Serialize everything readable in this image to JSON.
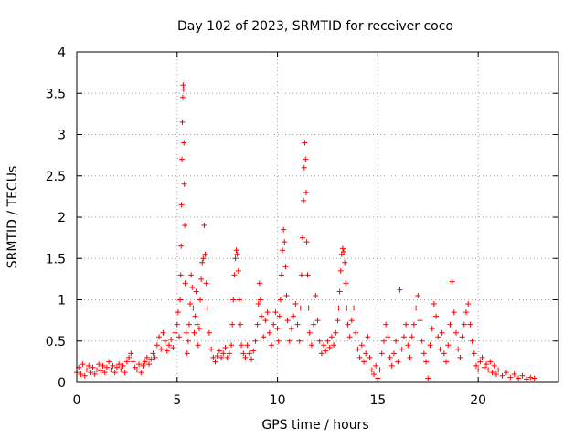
{
  "chart_data": {
    "type": "scatter",
    "title": "Day 102 of 2023, SRMTID for receiver coco",
    "xlabel": "GPS time / hours",
    "ylabel": "SRMTID / TECUs",
    "xlim": [
      0,
      24
    ],
    "ylim": [
      0,
      4
    ],
    "xticks": [
      0,
      5,
      10,
      15,
      20
    ],
    "yticks": [
      0,
      0.5,
      1,
      1.5,
      2,
      2.5,
      3,
      3.5,
      4
    ],
    "xtick_labels": [
      "0",
      "5",
      "10",
      "15",
      "20"
    ],
    "ytick_labels": [
      "0",
      "0.5",
      "1",
      "1.5",
      "2",
      "2.5",
      "3",
      "3.5",
      "4"
    ],
    "grid": true,
    "marker": "+",
    "marker_color": "#ff0000",
    "series": [
      {
        "name": "SRMTID",
        "points": [
          [
            0.0,
            0.12
          ],
          [
            0.1,
            0.18
          ],
          [
            0.2,
            0.1
          ],
          [
            0.3,
            0.22
          ],
          [
            0.4,
            0.08
          ],
          [
            0.5,
            0.15
          ],
          [
            0.6,
            0.2
          ],
          [
            0.7,
            0.12
          ],
          [
            0.8,
            0.18
          ],
          [
            0.9,
            0.1
          ],
          [
            1.0,
            0.15
          ],
          [
            1.1,
            0.22
          ],
          [
            1.2,
            0.14
          ],
          [
            1.3,
            0.2
          ],
          [
            1.4,
            0.12
          ],
          [
            1.5,
            0.18
          ],
          [
            1.6,
            0.25
          ],
          [
            1.7,
            0.15
          ],
          [
            1.8,
            0.2
          ],
          [
            1.9,
            0.12
          ],
          [
            2.0,
            0.18
          ],
          [
            2.1,
            0.22
          ],
          [
            2.2,
            0.15
          ],
          [
            2.3,
            0.2
          ],
          [
            2.4,
            0.12
          ],
          [
            2.5,
            0.25
          ],
          [
            2.6,
            0.3
          ],
          [
            2.7,
            0.35
          ],
          [
            2.8,
            0.25
          ],
          [
            2.9,
            0.18
          ],
          [
            3.0,
            0.15
          ],
          [
            3.1,
            0.22
          ],
          [
            3.2,
            0.12
          ],
          [
            3.3,
            0.2
          ],
          [
            3.4,
            0.25
          ],
          [
            3.5,
            0.3
          ],
          [
            3.6,
            0.22
          ],
          [
            3.7,
            0.28
          ],
          [
            3.8,
            0.35
          ],
          [
            3.9,
            0.3
          ],
          [
            4.0,
            0.45
          ],
          [
            4.1,
            0.55
          ],
          [
            4.2,
            0.4
          ],
          [
            4.3,
            0.6
          ],
          [
            4.4,
            0.5
          ],
          [
            4.5,
            0.38
          ],
          [
            4.6,
            0.45
          ],
          [
            4.7,
            0.52
          ],
          [
            4.8,
            0.42
          ],
          [
            4.9,
            0.6
          ],
          [
            5.0,
            0.7
          ],
          [
            5.05,
            0.85
          ],
          [
            5.1,
            0.55
          ],
          [
            5.15,
            1.0
          ],
          [
            5.18,
            1.3
          ],
          [
            5.2,
            1.65
          ],
          [
            5.22,
            2.15
          ],
          [
            5.24,
            2.7
          ],
          [
            5.26,
            3.15
          ],
          [
            5.28,
            3.45
          ],
          [
            5.3,
            3.6
          ],
          [
            5.32,
            3.55
          ],
          [
            5.34,
            2.9
          ],
          [
            5.36,
            2.4
          ],
          [
            5.38,
            1.9
          ],
          [
            5.4,
            1.2
          ],
          [
            5.45,
            0.6
          ],
          [
            5.5,
            0.35
          ],
          [
            5.55,
            0.5
          ],
          [
            5.6,
            0.7
          ],
          [
            5.65,
            0.95
          ],
          [
            5.7,
            1.3
          ],
          [
            5.75,
            1.15
          ],
          [
            5.8,
            0.9
          ],
          [
            5.85,
            0.6
          ],
          [
            5.9,
            0.8
          ],
          [
            5.95,
            1.1
          ],
          [
            6.0,
            0.7
          ],
          [
            6.05,
            0.45
          ],
          [
            6.1,
            0.65
          ],
          [
            6.15,
            1.0
          ],
          [
            6.2,
            1.25
          ],
          [
            6.25,
            1.45
          ],
          [
            6.3,
            1.5
          ],
          [
            6.35,
            1.9
          ],
          [
            6.4,
            1.55
          ],
          [
            6.45,
            1.2
          ],
          [
            6.5,
            0.9
          ],
          [
            6.6,
            0.6
          ],
          [
            6.7,
            0.4
          ],
          [
            6.8,
            0.3
          ],
          [
            6.9,
            0.25
          ],
          [
            7.0,
            0.32
          ],
          [
            7.1,
            0.38
          ],
          [
            7.2,
            0.3
          ],
          [
            7.3,
            0.35
          ],
          [
            7.4,
            0.42
          ],
          [
            7.5,
            0.3
          ],
          [
            7.6,
            0.35
          ],
          [
            7.7,
            0.45
          ],
          [
            7.75,
            0.7
          ],
          [
            7.8,
            1.0
          ],
          [
            7.85,
            1.3
          ],
          [
            7.9,
            1.5
          ],
          [
            7.95,
            1.6
          ],
          [
            8.0,
            1.55
          ],
          [
            8.05,
            1.35
          ],
          [
            8.1,
            1.0
          ],
          [
            8.15,
            0.7
          ],
          [
            8.2,
            0.45
          ],
          [
            8.3,
            0.35
          ],
          [
            8.4,
            0.3
          ],
          [
            8.5,
            0.45
          ],
          [
            8.6,
            0.35
          ],
          [
            8.7,
            0.28
          ],
          [
            8.8,
            0.38
          ],
          [
            8.9,
            0.5
          ],
          [
            9.0,
            0.7
          ],
          [
            9.05,
            0.95
          ],
          [
            9.1,
            1.2
          ],
          [
            9.15,
            1.0
          ],
          [
            9.2,
            0.8
          ],
          [
            9.3,
            0.55
          ],
          [
            9.4,
            0.75
          ],
          [
            9.5,
            0.85
          ],
          [
            9.6,
            0.6
          ],
          [
            9.7,
            0.45
          ],
          [
            9.8,
            0.7
          ],
          [
            9.9,
            0.85
          ],
          [
            10.0,
            0.65
          ],
          [
            10.05,
            0.5
          ],
          [
            10.1,
            0.8
          ],
          [
            10.15,
            1.0
          ],
          [
            10.2,
            1.3
          ],
          [
            10.25,
            1.6
          ],
          [
            10.3,
            1.85
          ],
          [
            10.35,
            1.7
          ],
          [
            10.4,
            1.4
          ],
          [
            10.45,
            1.05
          ],
          [
            10.5,
            0.75
          ],
          [
            10.6,
            0.5
          ],
          [
            10.7,
            0.65
          ],
          [
            10.8,
            0.8
          ],
          [
            10.9,
            0.95
          ],
          [
            11.0,
            0.7
          ],
          [
            11.1,
            0.5
          ],
          [
            11.15,
            0.9
          ],
          [
            11.2,
            1.3
          ],
          [
            11.25,
            1.75
          ],
          [
            11.3,
            2.2
          ],
          [
            11.33,
            2.6
          ],
          [
            11.36,
            2.9
          ],
          [
            11.4,
            2.7
          ],
          [
            11.43,
            2.3
          ],
          [
            11.46,
            1.7
          ],
          [
            11.5,
            1.3
          ],
          [
            11.55,
            0.9
          ],
          [
            11.6,
            0.6
          ],
          [
            11.7,
            0.45
          ],
          [
            11.8,
            0.7
          ],
          [
            11.9,
            1.05
          ],
          [
            12.0,
            0.75
          ],
          [
            12.1,
            0.5
          ],
          [
            12.2,
            0.35
          ],
          [
            12.3,
            0.45
          ],
          [
            12.4,
            0.38
          ],
          [
            12.5,
            0.5
          ],
          [
            12.6,
            0.42
          ],
          [
            12.7,
            0.55
          ],
          [
            12.8,
            0.45
          ],
          [
            12.9,
            0.6
          ],
          [
            13.0,
            0.75
          ],
          [
            13.05,
            0.9
          ],
          [
            13.1,
            1.1
          ],
          [
            13.15,
            1.35
          ],
          [
            13.2,
            1.55
          ],
          [
            13.25,
            1.62
          ],
          [
            13.3,
            1.58
          ],
          [
            13.35,
            1.45
          ],
          [
            13.4,
            1.2
          ],
          [
            13.45,
            0.9
          ],
          [
            13.5,
            0.7
          ],
          [
            13.6,
            0.55
          ],
          [
            13.7,
            0.75
          ],
          [
            13.8,
            0.9
          ],
          [
            13.9,
            0.6
          ],
          [
            14.0,
            0.4
          ],
          [
            14.1,
            0.3
          ],
          [
            14.2,
            0.45
          ],
          [
            14.3,
            0.25
          ],
          [
            14.4,
            0.35
          ],
          [
            14.5,
            0.55
          ],
          [
            14.6,
            0.3
          ],
          [
            14.7,
            0.15
          ],
          [
            14.8,
            0.1
          ],
          [
            14.9,
            0.2
          ],
          [
            15.0,
            0.05
          ],
          [
            15.1,
            0.15
          ],
          [
            15.2,
            0.35
          ],
          [
            15.3,
            0.5
          ],
          [
            15.4,
            0.7
          ],
          [
            15.5,
            0.55
          ],
          [
            15.6,
            0.3
          ],
          [
            15.7,
            0.2
          ],
          [
            15.8,
            0.35
          ],
          [
            15.9,
            0.5
          ],
          [
            16.0,
            0.25
          ],
          [
            16.1,
            1.12
          ],
          [
            16.2,
            0.4
          ],
          [
            16.3,
            0.55
          ],
          [
            16.4,
            0.7
          ],
          [
            16.5,
            0.45
          ],
          [
            16.6,
            0.3
          ],
          [
            16.7,
            0.55
          ],
          [
            16.8,
            0.7
          ],
          [
            16.9,
            0.9
          ],
          [
            17.0,
            1.05
          ],
          [
            17.1,
            0.75
          ],
          [
            17.2,
            0.5
          ],
          [
            17.3,
            0.35
          ],
          [
            17.4,
            0.25
          ],
          [
            17.5,
            0.05
          ],
          [
            17.6,
            0.45
          ],
          [
            17.7,
            0.65
          ],
          [
            17.8,
            0.95
          ],
          [
            17.9,
            0.8
          ],
          [
            18.0,
            0.55
          ],
          [
            18.1,
            0.4
          ],
          [
            18.2,
            0.6
          ],
          [
            18.3,
            0.35
          ],
          [
            18.4,
            0.25
          ],
          [
            18.5,
            0.45
          ],
          [
            18.6,
            0.7
          ],
          [
            18.7,
            1.22
          ],
          [
            18.8,
            0.85
          ],
          [
            18.9,
            0.6
          ],
          [
            19.0,
            0.4
          ],
          [
            19.1,
            0.3
          ],
          [
            19.2,
            0.55
          ],
          [
            19.3,
            0.7
          ],
          [
            19.4,
            0.85
          ],
          [
            19.5,
            0.95
          ],
          [
            19.6,
            0.7
          ],
          [
            19.7,
            0.5
          ],
          [
            19.8,
            0.35
          ],
          [
            19.9,
            0.2
          ],
          [
            20.0,
            0.15
          ],
          [
            20.1,
            0.25
          ],
          [
            20.2,
            0.3
          ],
          [
            20.3,
            0.18
          ],
          [
            20.4,
            0.22
          ],
          [
            20.5,
            0.15
          ],
          [
            20.6,
            0.25
          ],
          [
            20.7,
            0.12
          ],
          [
            20.8,
            0.2
          ],
          [
            20.9,
            0.1
          ],
          [
            21.0,
            0.15
          ],
          [
            21.2,
            0.08
          ],
          [
            21.4,
            0.12
          ],
          [
            21.6,
            0.06
          ],
          [
            21.8,
            0.1
          ],
          [
            22.0,
            0.05
          ],
          [
            22.2,
            0.08
          ],
          [
            22.4,
            0.04
          ],
          [
            22.6,
            0.06
          ],
          [
            22.8,
            0.05
          ]
        ]
      }
    ]
  }
}
